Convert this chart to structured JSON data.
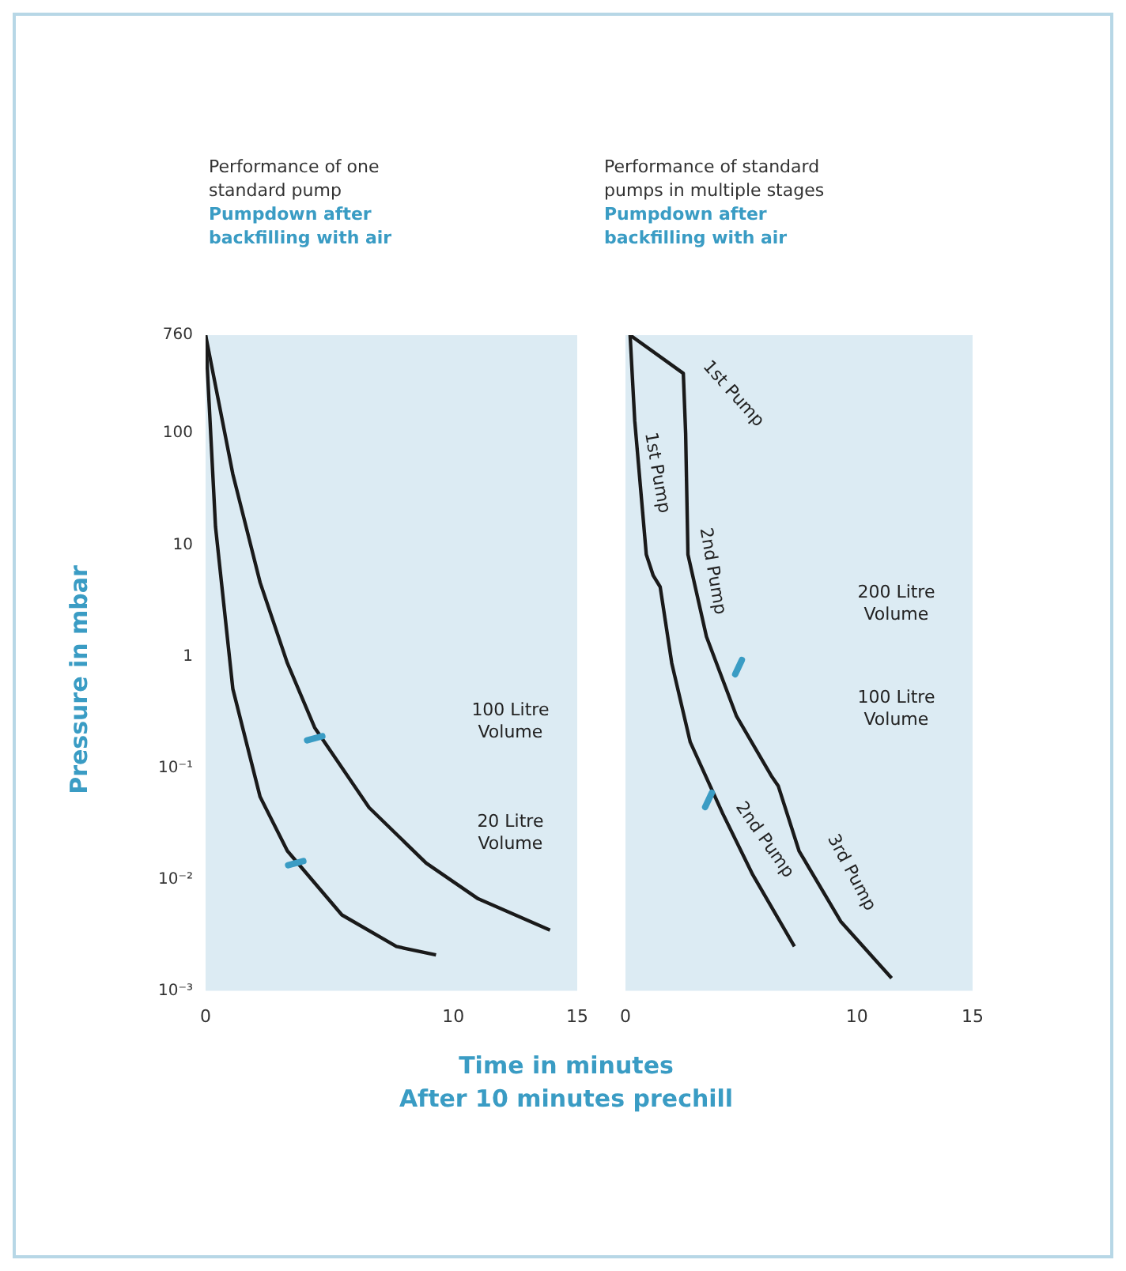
{
  "chart_data": [
    {
      "type": "line",
      "title": "Performance of one standard pump",
      "subtitle": "Pumpdown after backfilling with air",
      "xlabel": "Time in minutes",
      "ylabel": "Pressure in mbar",
      "log": "y",
      "grid": false,
      "legend": false,
      "marker": "none",
      "line_style": "solid",
      "xlim": [
        0,
        15
      ],
      "xticks": [
        0,
        10,
        15
      ],
      "ylim": [
        0.001,
        760
      ],
      "yticks": [
        760,
        100,
        10,
        1,
        {
          "value": 0.1,
          "label": "10⁻¹"
        },
        {
          "value": 0.01,
          "label": "10⁻²"
        },
        {
          "value": 0.001,
          "label": "10⁻³"
        }
      ],
      "annotations": [
        "After 10 minutes prechill",
        "100 Litre Volume",
        "20 Litre Volume"
      ],
      "series": [
        {
          "color": "#1a1a1a",
          "x": [
            0,
            0.4,
            1.1,
            2.2,
            3.3,
            5.5,
            7.7,
            9.3
          ],
          "values": [
            760,
            14.5,
            0.51,
            0.055,
            0.018,
            0.0048,
            0.0025,
            0.0021
          ]
        },
        {
          "color": "#1a1a1a",
          "x": [
            0,
            1.1,
            2.2,
            3.3,
            4.4,
            6.6,
            8.9,
            11,
            13.9
          ],
          "values": [
            760,
            43,
            4.6,
            0.87,
            0.23,
            0.044,
            0.014,
            0.0067,
            0.0035
          ]
        }
      ]
    },
    {
      "type": "line",
      "title": "Performance of standard pumps in multiple stages",
      "subtitle": "Pumpdown after backfilling with air",
      "log": "y",
      "grid": false,
      "legend": false,
      "marker": "none",
      "line_style": "solid",
      "tick_labels": "x",
      "xlim": [
        0,
        15
      ],
      "xticks": [
        0,
        10,
        15
      ],
      "ylim": [
        0.001,
        760
      ],
      "yticks": [
        760,
        100,
        10,
        1,
        0.1,
        0.01,
        0.001
      ],
      "annotations": [
        "1st Pump",
        "1st Pump",
        "2nd Pump",
        "200 Litre Volume",
        "100 Litre Volume",
        "2nd Pump",
        "3rd Pump"
      ],
      "series": [
        {
          "color": "#1a1a1a",
          "x": [
            0.2,
            2.5,
            2.6,
            2.7,
            3.5,
            4.8,
            6.3,
            6.6,
            7.5,
            9.3,
            11.5
          ],
          "values": [
            760,
            345,
            100,
            8.2,
            1.5,
            0.29,
            0.085,
            0.069,
            0.018,
            0.0042,
            0.0013
          ]
        },
        {
          "color": "#1a1a1a",
          "x": [
            0.2,
            0.4,
            0.9,
            1.2,
            1.5,
            2.0,
            2.8,
            4.2,
            5.5,
            7.3
          ],
          "values": [
            760,
            130,
            8.2,
            5.3,
            4.2,
            0.87,
            0.17,
            0.039,
            0.011,
            0.0025
          ]
        }
      ]
    }
  ]
}
